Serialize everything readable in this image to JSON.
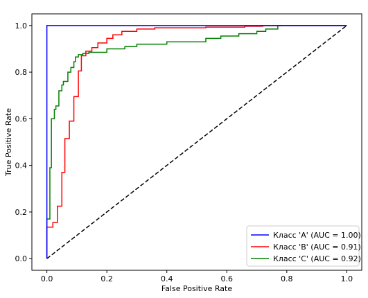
{
  "chart_data": {
    "type": "line",
    "title": "",
    "xlabel": "False Positive Rate",
    "ylabel": "True Positive Rate",
    "xlim": [
      -0.05,
      1.05
    ],
    "ylim": [
      -0.05,
      1.05
    ],
    "xticks": [
      0.0,
      0.2,
      0.4,
      0.6,
      0.8,
      1.0
    ],
    "yticks": [
      0.0,
      0.2,
      0.4,
      0.6,
      0.8,
      1.0
    ],
    "xtick_labels": [
      "0.0",
      "0.2",
      "0.4",
      "0.6",
      "0.8",
      "1.0"
    ],
    "ytick_labels": [
      "0.0",
      "0.2",
      "0.4",
      "0.6",
      "0.8",
      "1.0"
    ],
    "grid": false,
    "legend_position": "lower-right",
    "series": [
      {
        "name": "Класс 'A' (AUC = 1.00)",
        "color": "#0000ff",
        "x": [
          0.0,
          0.0,
          1.0
        ],
        "y": [
          0.0,
          1.0,
          1.0
        ]
      },
      {
        "name": "Класс 'B' (AUC = 0.91)",
        "color": "#ff0000",
        "x": [
          0.0,
          0.0,
          0.02,
          0.02,
          0.035,
          0.035,
          0.05,
          0.05,
          0.06,
          0.06,
          0.075,
          0.075,
          0.09,
          0.09,
          0.105,
          0.105,
          0.115,
          0.115,
          0.13,
          0.13,
          0.15,
          0.15,
          0.17,
          0.17,
          0.2,
          0.2,
          0.22,
          0.22,
          0.25,
          0.25,
          0.3,
          0.3,
          0.36,
          0.36,
          0.53,
          0.53,
          0.66,
          0.66,
          0.72,
          0.72,
          0.78,
          0.78,
          1.0
        ],
        "y": [
          0.0,
          0.135,
          0.135,
          0.155,
          0.155,
          0.225,
          0.225,
          0.37,
          0.37,
          0.515,
          0.515,
          0.59,
          0.59,
          0.695,
          0.695,
          0.805,
          0.805,
          0.87,
          0.87,
          0.89,
          0.89,
          0.905,
          0.905,
          0.925,
          0.925,
          0.945,
          0.945,
          0.96,
          0.96,
          0.975,
          0.975,
          0.985,
          0.985,
          0.99,
          0.99,
          0.993,
          0.993,
          0.997,
          0.997,
          0.999,
          0.999,
          1.0,
          1.0
        ]
      },
      {
        "name": "Класс 'C' (AUC = 0.92)",
        "color": "#008000",
        "x": [
          0.0,
          0.0,
          0.01,
          0.01,
          0.015,
          0.015,
          0.025,
          0.025,
          0.03,
          0.03,
          0.04,
          0.04,
          0.05,
          0.05,
          0.055,
          0.055,
          0.07,
          0.07,
          0.08,
          0.08,
          0.09,
          0.09,
          0.095,
          0.095,
          0.105,
          0.105,
          0.12,
          0.12,
          0.14,
          0.14,
          0.2,
          0.2,
          0.26,
          0.26,
          0.3,
          0.3,
          0.4,
          0.4,
          0.53,
          0.53,
          0.58,
          0.58,
          0.64,
          0.64,
          0.7,
          0.7,
          0.73,
          0.73,
          0.77,
          0.77,
          1.0
        ],
        "y": [
          0.0,
          0.17,
          0.17,
          0.39,
          0.39,
          0.6,
          0.6,
          0.64,
          0.64,
          0.655,
          0.655,
          0.72,
          0.72,
          0.745,
          0.745,
          0.76,
          0.76,
          0.8,
          0.8,
          0.82,
          0.82,
          0.845,
          0.845,
          0.865,
          0.865,
          0.875,
          0.875,
          0.88,
          0.88,
          0.885,
          0.885,
          0.9,
          0.9,
          0.91,
          0.91,
          0.92,
          0.92,
          0.93,
          0.93,
          0.945,
          0.945,
          0.955,
          0.955,
          0.965,
          0.965,
          0.975,
          0.975,
          0.985,
          0.985,
          1.0,
          1.0
        ]
      },
      {
        "name": "",
        "color": "#000000",
        "style": "dashed",
        "x": [
          0.0,
          1.0
        ],
        "y": [
          0.0,
          1.0
        ]
      }
    ]
  }
}
